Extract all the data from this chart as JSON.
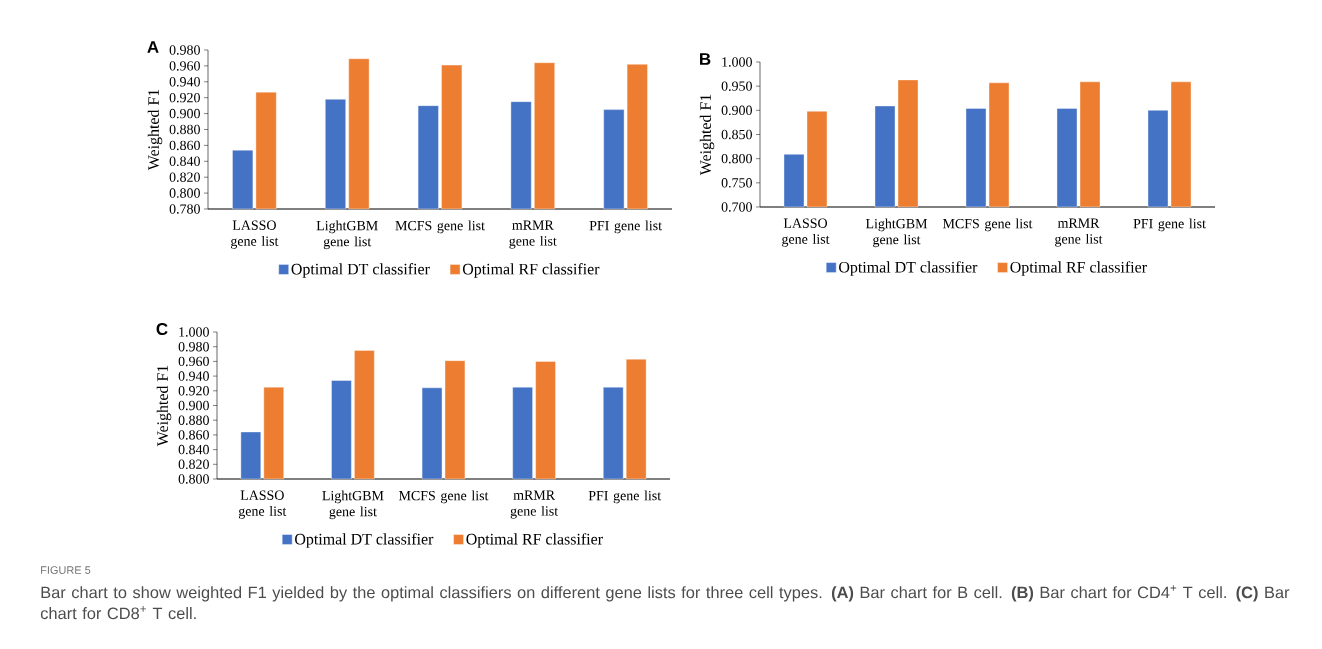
{
  "chart_data": [
    {
      "type": "bar",
      "title": "A",
      "ylabel": "Weighted F1",
      "legend": "bottom",
      "categories": [
        "LASSO gene list",
        "LightGBM gene list",
        "MCFS gene list",
        "mRMR gene list",
        "PFI gene list"
      ],
      "series": [
        {
          "name": "Optimal DT classifier",
          "color": "#4472c4",
          "values": [
            0.854,
            0.918,
            0.91,
            0.915,
            0.905
          ]
        },
        {
          "name": "Optimal RF classifier",
          "color": "#ed7d31",
          "values": [
            0.927,
            0.969,
            0.961,
            0.964,
            0.962
          ]
        }
      ],
      "ylim": [
        0.78,
        0.98
      ],
      "yticks": [
        {
          "value": 0.78,
          "label": "0.780"
        },
        {
          "value": 0.8,
          "label": "0.800"
        },
        {
          "value": 0.82,
          "label": "0.820"
        },
        {
          "value": 0.84,
          "label": "0.840"
        },
        {
          "value": 0.86,
          "label": "0.860"
        },
        {
          "value": 0.88,
          "label": "0.880"
        },
        {
          "value": 0.9,
          "label": "0.900"
        },
        {
          "value": 0.92,
          "label": "0.920"
        },
        {
          "value": 0.94,
          "label": "0.940"
        },
        {
          "value": 0.96,
          "label": "0.960"
        },
        {
          "value": 0.98,
          "label": "0.980"
        }
      ],
      "annotations": [
        "FIGURE 5",
        "Bar chart to show weighted F1 yielded by the optimal classifiers on different gene lists for three cell types. **(A)** Bar chart for B cell. **(B)** Bar chart for CD4$^{+}$ T cell. **(C)** Bar chart for CD8$^{+}$ T cell."
      ]
    },
    {
      "type": "bar",
      "title": "B",
      "ylabel": "Weighted F1",
      "legend": "bottom",
      "categories": [
        "LASSO gene list",
        "LightGBM gene list",
        "MCFS gene list",
        "mRMR gene list",
        "PFI gene list"
      ],
      "series": [
        {
          "name": "Optimal DT classifier",
          "color": "#4472c4",
          "values": [
            0.809,
            0.909,
            0.904,
            0.904,
            0.9
          ]
        },
        {
          "name": "Optimal RF classifier",
          "color": "#ed7d31",
          "values": [
            0.898,
            0.963,
            0.957,
            0.959,
            0.959
          ]
        }
      ],
      "ylim": [
        0.7,
        1.0
      ],
      "yticks": [
        {
          "value": 0.7,
          "label": "0.700"
        },
        {
          "value": 0.75,
          "label": "0.750"
        },
        {
          "value": 0.8,
          "label": "0.800"
        },
        {
          "value": 0.85,
          "label": "0.850"
        },
        {
          "value": 0.9,
          "label": "0.900"
        },
        {
          "value": 0.95,
          "label": "0.950"
        },
        {
          "value": 1.0,
          "label": "1.000"
        }
      ]
    },
    {
      "type": "bar",
      "title": "C",
      "ylabel": "Weighted F1",
      "legend": "bottom",
      "categories": [
        "LASSO gene list",
        "LightGBM gene list",
        "MCFS gene list",
        "mRMR gene list",
        "PFI gene list"
      ],
      "series": [
        {
          "name": "Optimal DT classifier",
          "color": "#4472c4",
          "values": [
            0.864,
            0.934,
            0.924,
            0.925,
            0.925
          ]
        },
        {
          "name": "Optimal RF classifier",
          "color": "#ed7d31",
          "values": [
            0.925,
            0.975,
            0.961,
            0.96,
            0.963
          ]
        }
      ],
      "ylim": [
        0.8,
        1.0
      ],
      "yticks": [
        {
          "value": 0.8,
          "label": "0.800"
        },
        {
          "value": 0.82,
          "label": "0.820"
        },
        {
          "value": 0.84,
          "label": "0.840"
        },
        {
          "value": 0.86,
          "label": "0.860"
        },
        {
          "value": 0.88,
          "label": "0.880"
        },
        {
          "value": 0.9,
          "label": "0.900"
        },
        {
          "value": 0.92,
          "label": "0.920"
        },
        {
          "value": 0.94,
          "label": "0.940"
        },
        {
          "value": 0.96,
          "label": "0.960"
        },
        {
          "value": 0.98,
          "label": "0.980"
        },
        {
          "value": 1.0,
          "label": "1.000"
        }
      ]
    }
  ]
}
